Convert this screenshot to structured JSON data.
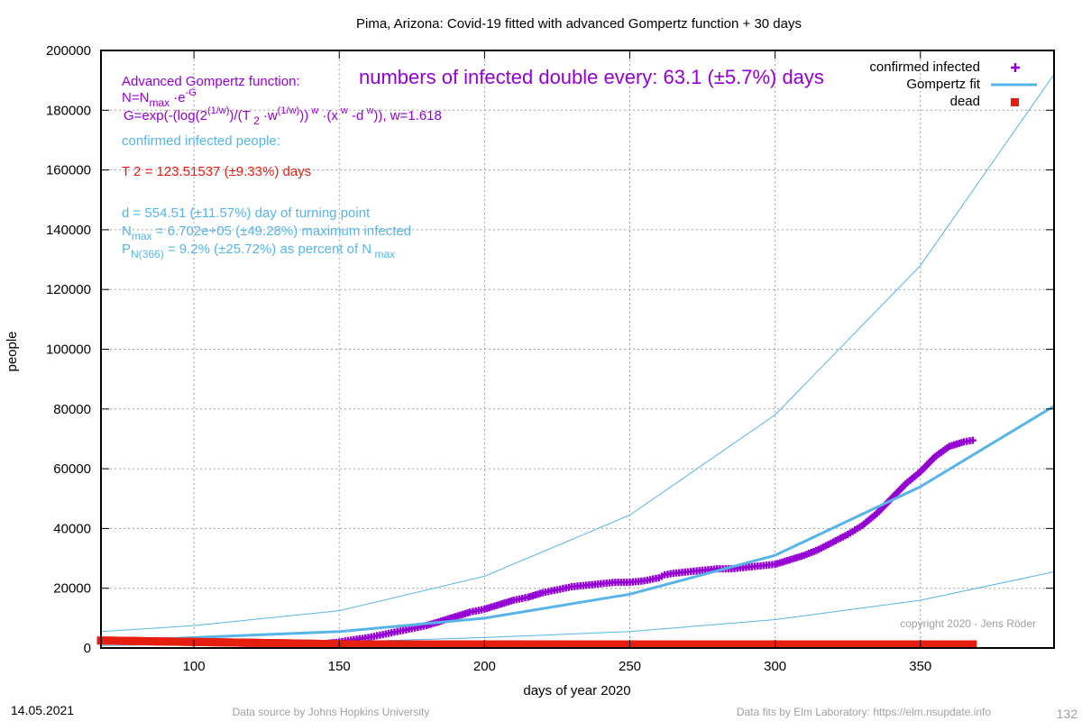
{
  "chart_data": {
    "type": "line",
    "title": "Pima,  Arizona: Covid-19 fitted with advanced Gompertz function + 30 days",
    "xlabel": "days of year 2020",
    "ylabel": "people",
    "xlim": [
      68,
      396
    ],
    "ylim": [
      0,
      200000
    ],
    "x_ticks": [
      100,
      150,
      200,
      250,
      300,
      350
    ],
    "x_tick_labels": [
      "100",
      "150",
      "200",
      "250",
      "300",
      "350"
    ],
    "y_ticks": [
      0,
      20000,
      40000,
      60000,
      80000,
      100000,
      120000,
      140000,
      160000,
      180000,
      200000
    ],
    "y_tick_labels": [
      "0",
      "20000",
      "40000",
      "60000",
      "80000",
      "100000",
      "120000",
      "140000",
      "160000",
      "180000",
      "200000"
    ],
    "grid": true,
    "legend_position": "top-right",
    "legend": [
      {
        "label": "confirmed infected",
        "color": "#9400d3",
        "marker": "plus"
      },
      {
        "label": "Gompertz fit",
        "color": "#56b4e9",
        "marker": "line"
      },
      {
        "label": "dead",
        "color": "#e51e10",
        "marker": "square"
      }
    ],
    "series": [
      {
        "name": "confirmed infected",
        "color": "#9400d3",
        "x": [
          137,
          145,
          150,
          155,
          160,
          165,
          170,
          175,
          180,
          185,
          190,
          195,
          200,
          205,
          210,
          215,
          220,
          225,
          230,
          235,
          240,
          245,
          250,
          255,
          260,
          262,
          265,
          270,
          275,
          280,
          285,
          290,
          295,
          300,
          305,
          310,
          315,
          320,
          325,
          330,
          335,
          340,
          345,
          350,
          355,
          360,
          365,
          368
        ],
        "y": [
          1000,
          1500,
          2000,
          2800,
          3500,
          4500,
          5500,
          6500,
          7500,
          9000,
          10500,
          12000,
          13000,
          14500,
          16000,
          17000,
          18500,
          19500,
          20500,
          21000,
          21500,
          22000,
          22000,
          22500,
          23500,
          24500,
          25000,
          25500,
          26000,
          26500,
          26500,
          27000,
          27500,
          28000,
          29500,
          31000,
          33000,
          35500,
          38000,
          41000,
          45000,
          50000,
          55000,
          59000,
          64000,
          67500,
          69000,
          69500
        ]
      },
      {
        "name": "Gompertz fit",
        "color": "#56b4e9",
        "x": [
          68,
          100,
          150,
          200,
          250,
          300,
          350,
          396
        ],
        "y": [
          2000,
          3500,
          5500,
          10000,
          18000,
          31000,
          54000,
          81000
        ]
      },
      {
        "name": "",
        "color": "#56b4e9",
        "thin": true,
        "x": [
          68,
          100,
          150,
          200,
          250,
          300,
          350,
          396
        ],
        "y": [
          5500,
          7500,
          12500,
          24000,
          44500,
          78000,
          128000,
          192000
        ]
      },
      {
        "name": "",
        "color": "#56b4e9",
        "thin": true,
        "x": [
          68,
          100,
          150,
          200,
          250,
          300,
          350,
          396
        ],
        "y": [
          800,
          1200,
          2000,
          3500,
          5500,
          9500,
          16000,
          25500
        ]
      },
      {
        "name": "dead",
        "color": "#e51e10",
        "x": [
          68,
          135,
          214,
          345,
          368
        ],
        "y": [
          2500,
          1500,
          200,
          500,
          1000
        ]
      }
    ],
    "annotations": {
      "formula_title": "Advanced Gompertz function:",
      "doubling": "numbers of infected double every: 63.1 (±5.7%) days",
      "confirmed_header": "confirmed infected people:",
      "t2": "T 2  = 123.51537 (±9.33%) days",
      "turning_point": "d = 554.51 (±11.57%) day of turning point",
      "w_value": "w=1.618",
      "n_max_value": "= 6.702e+05 (±49.28%) maximum infected",
      "p_value": "= 9.2% (±25.72%) as percent of N",
      "copyright": "copyright 2020 - Jens Röder"
    }
  },
  "footer": {
    "date": "14.05.2021",
    "source": "Data source by Johns Hopkins University",
    "fits": "Data fits by Elm Laboratory: https://elm.nsupdate.info",
    "page_number": "132"
  }
}
